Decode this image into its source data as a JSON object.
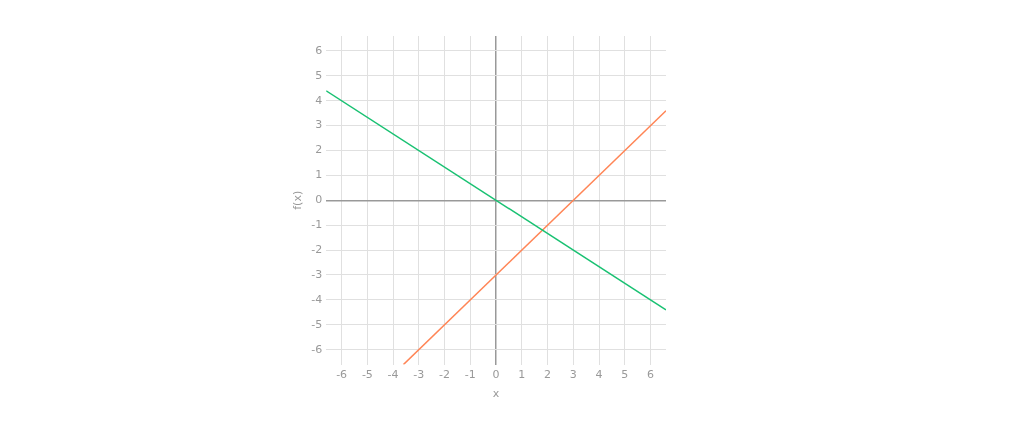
{
  "chart_data": {
    "type": "line",
    "xlabel": "x",
    "ylabel": "f(x)",
    "xlim": [
      -6.6,
      6.6
    ],
    "ylim": [
      -6.6,
      6.6
    ],
    "xticks": [
      -6,
      -5,
      -4,
      -3,
      -2,
      -1,
      0,
      1,
      2,
      3,
      4,
      5,
      6
    ],
    "yticks": [
      -6,
      -5,
      -4,
      -3,
      -2,
      -1,
      0,
      1,
      2,
      3,
      4,
      5,
      6
    ],
    "grid": true,
    "legend": false,
    "series": [
      {
        "color": "#19c172",
        "x": [
          -6.6,
          6.6
        ],
        "values": [
          4.4,
          -4.4
        ]
      },
      {
        "color": "#ff8556",
        "x": [
          -3.6,
          6.6
        ],
        "values": [
          -6.6,
          3.6
        ]
      }
    ]
  }
}
